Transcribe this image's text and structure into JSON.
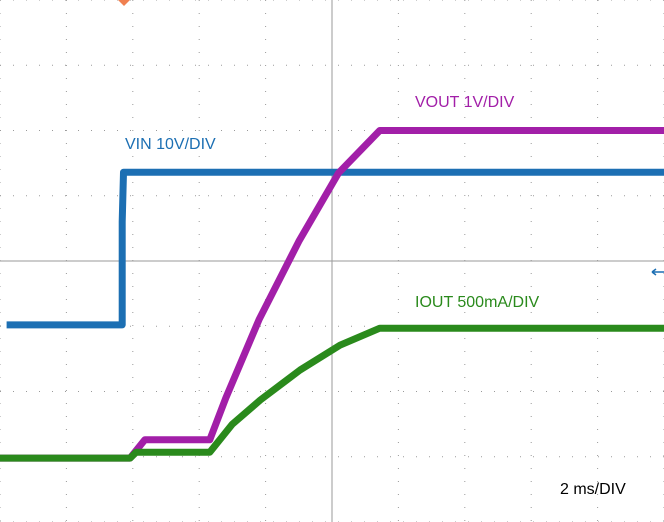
{
  "chart_data": {
    "type": "line",
    "xlim": [
      0,
      10
    ],
    "ylim": [
      0,
      8
    ],
    "xticks": [
      0,
      1,
      2,
      3,
      4,
      5,
      6,
      7,
      8,
      9,
      10
    ],
    "yticks": [
      0,
      1,
      2,
      3,
      4,
      5,
      6,
      7,
      8
    ],
    "grid": true,
    "annotation": "2 ms/DIV",
    "series": [
      {
        "name": "VIN 10V/DIV",
        "color": "#1c6fb3",
        "x": [
          0.1,
          1.84,
          1.84,
          1.86,
          10
        ],
        "values": [
          3.02,
          3.02,
          4.6,
          5.36,
          5.36
        ]
      },
      {
        "name": "VOUT 1V/DIV",
        "color": "#a21fa8",
        "x": [
          0,
          1.96,
          2.18,
          3.16,
          3.4,
          3.9,
          4.5,
          5.1,
          5.72,
          10
        ],
        "values": [
          0.98,
          0.98,
          1.26,
          1.26,
          1.9,
          3.1,
          4.3,
          5.35,
          6.0,
          6.0
        ]
      },
      {
        "name": "IOUT 500mA/DIV",
        "color": "#2a8a1c",
        "x": [
          0,
          1.96,
          2.05,
          3.16,
          3.5,
          3.92,
          4.52,
          5.12,
          5.72,
          10
        ],
        "values": [
          0.98,
          0.98,
          1.07,
          1.07,
          1.5,
          1.87,
          2.33,
          2.71,
          2.97,
          2.97
        ]
      }
    ]
  }
}
